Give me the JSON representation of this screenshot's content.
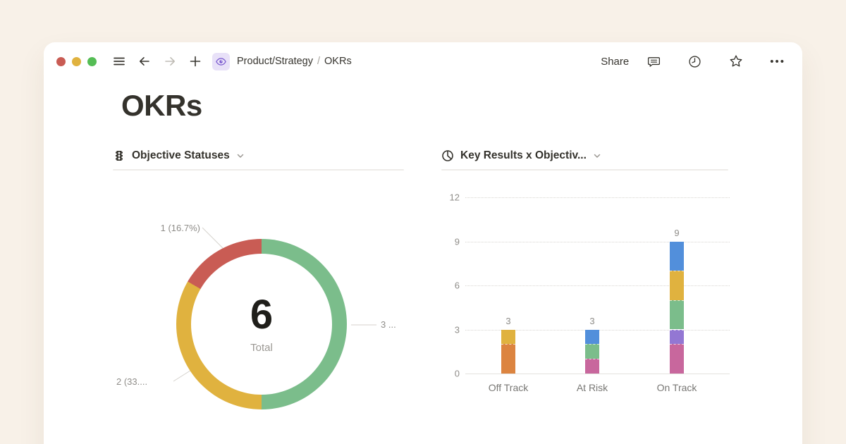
{
  "colors": {
    "background": "#F8F1E8",
    "window": "#FFFFFF",
    "text_dark": "#37352F",
    "text_gray": "#8F8D89",
    "badge_bg": "#E8E1F8",
    "badge_icon": "#7A5ACF",
    "traffic_red": "#C95C54",
    "traffic_yellow": "#E0B23F",
    "traffic_green": "#55BD55"
  },
  "window": {
    "topbar": {
      "breadcrumb": {
        "parent": "Product/Strategy",
        "separator": "/",
        "current": "OKRs"
      },
      "share_label": "Share",
      "more_label": "•••"
    },
    "page_title": "OKRs"
  },
  "chart_data": [
    {
      "type": "pie",
      "variant": "donut",
      "title": "Objective Statuses",
      "center_value": "6",
      "center_label": "Total",
      "total": 6,
      "legend_position": "callouts",
      "slices": [
        {
          "label": "3 ...",
          "value": 3,
          "percent": 50.0,
          "color": "#7BBD8B"
        },
        {
          "label": "2 (33....",
          "value": 2,
          "percent": 33.3,
          "color": "#E0B23F"
        },
        {
          "label": "1 (16.7%)",
          "value": 1,
          "percent": 16.7,
          "color": "#C95C54"
        }
      ]
    },
    {
      "type": "bar",
      "stacked": true,
      "title": "Key Results x Objectiv...",
      "categories": [
        "Off Track",
        "At Risk",
        "On Track"
      ],
      "totals": [
        3,
        3,
        9
      ],
      "y_ticks": [
        0,
        3,
        6,
        9,
        12
      ],
      "ylim": [
        0,
        12
      ],
      "grid": "dotted-horizontal",
      "stacks": [
        [
          {
            "value": 2,
            "color": "#DC8440"
          },
          {
            "value": 1,
            "color": "#E0B23F"
          }
        ],
        [
          {
            "value": 1,
            "color": "#C8679D"
          },
          {
            "value": 1,
            "color": "#7BBD8B"
          },
          {
            "value": 1,
            "color": "#528FDB"
          }
        ],
        [
          {
            "value": 2,
            "color": "#C8679D"
          },
          {
            "value": 1,
            "color": "#9377D3"
          },
          {
            "value": 2,
            "color": "#7BBD8B"
          },
          {
            "value": 2,
            "color": "#E0B23F"
          },
          {
            "value": 2,
            "color": "#528FDB"
          }
        ]
      ]
    }
  ]
}
